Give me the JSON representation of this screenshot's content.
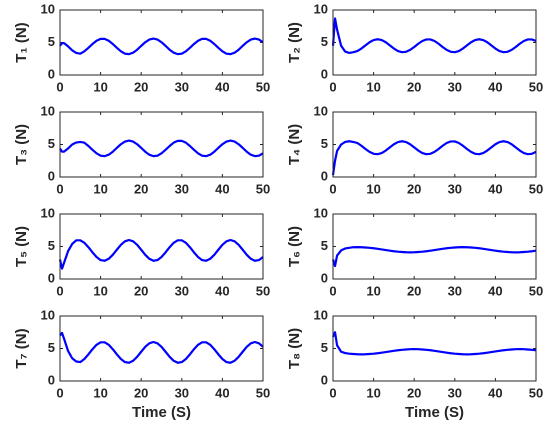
{
  "chart_data": [
    {
      "type": "line",
      "ylabel": "T₁ (N)",
      "xlim": [
        0,
        50
      ],
      "ylim": [
        0,
        10
      ],
      "xticks": [
        0,
        10,
        20,
        30,
        40,
        50
      ],
      "yticks": [
        0,
        5,
        10
      ],
      "x": [
        0,
        0.5,
        1,
        2,
        3,
        4,
        5,
        6,
        7,
        8,
        9,
        10,
        11,
        12,
        13,
        14,
        15,
        16,
        17,
        18,
        19,
        20,
        21,
        22,
        23,
        24,
        25,
        26,
        27,
        28,
        29,
        30,
        31,
        32,
        33,
        34,
        35,
        36,
        37,
        38,
        39,
        40,
        41,
        42,
        43,
        44,
        45,
        46,
        47,
        48,
        49,
        50
      ],
      "series": [
        {
          "color": "#0000ff",
          "values": [
            4.5,
            4.9,
            4.9,
            4.4,
            3.8,
            3.4,
            3.28,
            3.64,
            4.18,
            4.77,
            5.27,
            5.56,
            5.56,
            5.27,
            4.77,
            4.18,
            3.64,
            3.28,
            3.21,
            3.43,
            3.89,
            4.48,
            5.04,
            5.45,
            5.6,
            5.45,
            5.04,
            4.48,
            3.89,
            3.43,
            3.21,
            3.28,
            3.64,
            4.18,
            4.77,
            5.27,
            5.56,
            5.56,
            5.27,
            4.77,
            4.18,
            3.64,
            3.28,
            3.21,
            3.43,
            3.89,
            4.48,
            5.04,
            5.45,
            5.6,
            5.45,
            5.04
          ]
        }
      ]
    },
    {
      "type": "line",
      "ylabel": "T₂ (N)",
      "xlim": [
        0,
        50
      ],
      "ylim": [
        0,
        10
      ],
      "xticks": [
        0,
        10,
        20,
        30,
        40,
        50
      ],
      "yticks": [
        0,
        5,
        10
      ],
      "x": [
        0,
        0.5,
        1,
        2,
        3,
        4,
        5,
        6,
        7,
        8,
        9,
        10,
        11,
        12,
        13,
        14,
        15,
        16,
        17,
        18,
        19,
        20,
        21,
        22,
        23,
        24,
        25,
        26,
        27,
        28,
        29,
        30,
        31,
        32,
        33,
        34,
        35,
        36,
        37,
        38,
        39,
        40,
        41,
        42,
        43,
        44,
        45,
        46,
        47,
        48,
        49,
        50
      ],
      "series": [
        {
          "color": "#0000ff",
          "values": [
            4.5,
            8.7,
            7.0,
            4.5,
            3.6,
            3.4,
            3.51,
            3.69,
            4.07,
            4.56,
            5.04,
            5.38,
            5.5,
            5.38,
            5.04,
            4.56,
            4.07,
            3.69,
            3.51,
            3.57,
            3.86,
            4.31,
            4.81,
            5.23,
            5.47,
            5.47,
            5.23,
            4.81,
            4.31,
            3.86,
            3.57,
            3.51,
            3.69,
            4.07,
            4.56,
            5.04,
            5.38,
            5.5,
            5.38,
            5.04,
            4.56,
            4.07,
            3.69,
            3.51,
            3.57,
            3.86,
            4.31,
            4.81,
            5.23,
            5.47,
            5.47,
            5.23
          ]
        }
      ]
    },
    {
      "type": "line",
      "ylabel": "T₃ (N)",
      "xlim": [
        0,
        50
      ],
      "ylim": [
        0,
        10
      ],
      "xticks": [
        0,
        10,
        20,
        30,
        40,
        50
      ],
      "yticks": [
        0,
        5,
        10
      ],
      "x": [
        0,
        0.5,
        1,
        2,
        3,
        4,
        5,
        6,
        7,
        8,
        9,
        10,
        11,
        12,
        13,
        14,
        15,
        16,
        17,
        18,
        19,
        20,
        21,
        22,
        23,
        24,
        25,
        26,
        27,
        28,
        29,
        30,
        31,
        32,
        33,
        34,
        35,
        36,
        37,
        38,
        39,
        40,
        41,
        42,
        43,
        44,
        45,
        46,
        47,
        48,
        49,
        50
      ],
      "series": [
        {
          "color": "#0000ff",
          "values": [
            4.4,
            3.9,
            3.9,
            4.4,
            5.0,
            5.3,
            5.4,
            5.28,
            4.77,
            4.18,
            3.64,
            3.28,
            3.21,
            3.43,
            3.89,
            4.48,
            5.04,
            5.45,
            5.6,
            5.45,
            5.04,
            4.48,
            3.89,
            3.43,
            3.21,
            3.28,
            3.64,
            4.18,
            4.77,
            5.28,
            5.56,
            5.56,
            5.28,
            4.77,
            4.18,
            3.64,
            3.28,
            3.21,
            3.43,
            3.89,
            4.48,
            5.04,
            5.45,
            5.6,
            5.45,
            5.04,
            4.48,
            3.89,
            3.43,
            3.21,
            3.28,
            3.64
          ]
        }
      ]
    },
    {
      "type": "line",
      "ylabel": "T₄ (N)",
      "xlim": [
        0,
        50
      ],
      "ylim": [
        0,
        10
      ],
      "xticks": [
        0,
        10,
        20,
        30,
        40,
        50
      ],
      "yticks": [
        0,
        5,
        10
      ],
      "x": [
        0,
        0.5,
        1,
        2,
        3,
        4,
        5,
        6,
        7,
        8,
        9,
        10,
        11,
        12,
        13,
        14,
        15,
        16,
        17,
        18,
        19,
        20,
        21,
        22,
        23,
        24,
        25,
        26,
        27,
        28,
        29,
        30,
        31,
        32,
        33,
        34,
        35,
        36,
        37,
        38,
        39,
        40,
        41,
        42,
        43,
        44,
        45,
        46,
        47,
        48,
        49,
        50
      ],
      "series": [
        {
          "color": "#0000ff",
          "values": [
            0.3,
            2.5,
            4.0,
            5.0,
            5.4,
            5.5,
            5.4,
            5.23,
            4.81,
            4.31,
            3.86,
            3.57,
            3.51,
            3.69,
            4.07,
            4.56,
            5.04,
            5.38,
            5.5,
            5.38,
            5.04,
            4.56,
            4.07,
            3.69,
            3.51,
            3.57,
            3.86,
            4.31,
            4.81,
            5.23,
            5.47,
            5.47,
            5.23,
            4.81,
            4.31,
            3.86,
            3.57,
            3.51,
            3.69,
            4.07,
            4.56,
            5.04,
            5.38,
            5.5,
            5.38,
            5.04,
            4.56,
            4.07,
            3.69,
            3.51,
            3.57,
            3.86
          ]
        }
      ]
    },
    {
      "type": "line",
      "ylabel": "T₅ (N)",
      "xlim": [
        0,
        50
      ],
      "ylim": [
        0,
        10
      ],
      "xticks": [
        0,
        10,
        20,
        30,
        40,
        50
      ],
      "yticks": [
        0,
        5,
        10
      ],
      "x": [
        0,
        0.5,
        1,
        2,
        3,
        4,
        5,
        6,
        7,
        8,
        9,
        10,
        11,
        12,
        13,
        14,
        15,
        16,
        17,
        18,
        19,
        20,
        21,
        22,
        23,
        24,
        25,
        26,
        27,
        28,
        29,
        30,
        31,
        32,
        33,
        34,
        35,
        36,
        37,
        38,
        39,
        40,
        41,
        42,
        43,
        44,
        45,
        46,
        47,
        48,
        49,
        50
      ],
      "series": [
        {
          "color": "#0000ff",
          "values": [
            3.0,
            1.6,
            2.5,
            4.3,
            5.4,
            5.95,
            5.95,
            5.57,
            4.89,
            4.1,
            3.38,
            2.91,
            2.81,
            3.11,
            3.72,
            4.5,
            5.26,
            5.8,
            6.0,
            5.8,
            5.26,
            4.5,
            3.72,
            3.11,
            2.81,
            2.91,
            3.38,
            4.1,
            4.89,
            5.57,
            5.95,
            5.95,
            5.57,
            4.89,
            4.1,
            3.38,
            2.91,
            2.81,
            3.11,
            3.72,
            4.5,
            5.26,
            5.8,
            6.0,
            5.8,
            5.26,
            4.5,
            3.72,
            3.11,
            2.81,
            2.91,
            3.38
          ]
        }
      ]
    },
    {
      "type": "line",
      "ylabel": "T₆ (N)",
      "xlim": [
        0,
        50
      ],
      "ylim": [
        0,
        10
      ],
      "xticks": [
        0,
        10,
        20,
        30,
        40,
        50
      ],
      "yticks": [
        0,
        5,
        10
      ],
      "x": [
        0,
        0.5,
        1,
        2,
        3,
        4,
        5,
        6,
        7,
        8,
        9,
        10,
        11,
        12,
        13,
        14,
        15,
        16,
        17,
        18,
        19,
        20,
        21,
        22,
        23,
        24,
        25,
        26,
        27,
        28,
        29,
        30,
        31,
        32,
        33,
        34,
        35,
        36,
        37,
        38,
        39,
        40,
        41,
        42,
        43,
        44,
        45,
        46,
        47,
        48,
        49,
        50
      ],
      "series": [
        {
          "color": "#0000ff",
          "values": [
            3.0,
            2.0,
            3.6,
            4.4,
            4.7,
            4.8,
            4.89,
            4.9,
            4.89,
            4.85,
            4.8,
            4.73,
            4.64,
            4.55,
            4.45,
            4.36,
            4.27,
            4.2,
            4.15,
            4.11,
            4.1,
            4.11,
            4.15,
            4.2,
            4.27,
            4.36,
            4.45,
            4.55,
            4.64,
            4.73,
            4.8,
            4.85,
            4.89,
            4.9,
            4.89,
            4.85,
            4.8,
            4.73,
            4.64,
            4.55,
            4.45,
            4.36,
            4.27,
            4.2,
            4.15,
            4.11,
            4.1,
            4.11,
            4.15,
            4.2,
            4.27,
            4.36
          ]
        }
      ]
    },
    {
      "type": "line",
      "ylabel": "T₇ (N)",
      "xlabel": "Time (S)",
      "xlim": [
        0,
        50
      ],
      "ylim": [
        0,
        10
      ],
      "xticks": [
        0,
        10,
        20,
        30,
        40,
        50
      ],
      "yticks": [
        0,
        5,
        10
      ],
      "x": [
        0,
        0.5,
        1,
        2,
        3,
        4,
        5,
        6,
        7,
        8,
        9,
        10,
        11,
        12,
        13,
        14,
        15,
        16,
        17,
        18,
        19,
        20,
        21,
        22,
        23,
        24,
        25,
        26,
        27,
        28,
        29,
        30,
        31,
        32,
        33,
        34,
        35,
        36,
        37,
        38,
        39,
        40,
        41,
        42,
        43,
        44,
        45,
        46,
        47,
        48,
        49,
        50
      ],
      "series": [
        {
          "color": "#0000ff",
          "values": [
            7.0,
            7.4,
            6.5,
            4.6,
            3.5,
            3.0,
            2.91,
            3.38,
            4.1,
            4.89,
            5.57,
            5.95,
            5.95,
            5.57,
            4.89,
            4.1,
            3.38,
            2.91,
            2.81,
            3.11,
            3.72,
            4.5,
            5.26,
            5.8,
            6.0,
            5.8,
            5.26,
            4.5,
            3.72,
            3.11,
            2.81,
            2.91,
            3.38,
            4.1,
            4.89,
            5.57,
            5.95,
            5.95,
            5.57,
            4.89,
            4.1,
            3.38,
            2.91,
            2.81,
            3.11,
            3.72,
            4.5,
            5.26,
            5.8,
            6.0,
            5.8,
            5.26
          ]
        }
      ]
    },
    {
      "type": "line",
      "ylabel": "T₈ (N)",
      "xlabel": "Time (S)",
      "xlim": [
        0,
        50
      ],
      "ylim": [
        0,
        10
      ],
      "xticks": [
        0,
        10,
        20,
        30,
        40,
        50
      ],
      "yticks": [
        0,
        5,
        10
      ],
      "x": [
        0,
        0.5,
        1,
        2,
        3,
        4,
        5,
        6,
        7,
        8,
        9,
        10,
        11,
        12,
        13,
        14,
        15,
        16,
        17,
        18,
        19,
        20,
        21,
        22,
        23,
        24,
        25,
        26,
        27,
        28,
        29,
        30,
        31,
        32,
        33,
        34,
        35,
        36,
        37,
        38,
        39,
        40,
        41,
        42,
        43,
        44,
        45,
        46,
        47,
        48,
        49,
        50
      ],
      "series": [
        {
          "color": "#0000ff",
          "values": [
            6.8,
            7.5,
            5.5,
            4.5,
            4.3,
            4.2,
            4.15,
            4.11,
            4.1,
            4.11,
            4.15,
            4.2,
            4.27,
            4.36,
            4.45,
            4.55,
            4.64,
            4.73,
            4.8,
            4.85,
            4.89,
            4.9,
            4.89,
            4.85,
            4.8,
            4.73,
            4.64,
            4.55,
            4.45,
            4.36,
            4.27,
            4.2,
            4.15,
            4.11,
            4.1,
            4.11,
            4.15,
            4.2,
            4.27,
            4.36,
            4.45,
            4.55,
            4.64,
            4.73,
            4.8,
            4.85,
            4.89,
            4.9,
            4.89,
            4.85,
            4.8,
            4.73
          ]
        }
      ]
    }
  ]
}
